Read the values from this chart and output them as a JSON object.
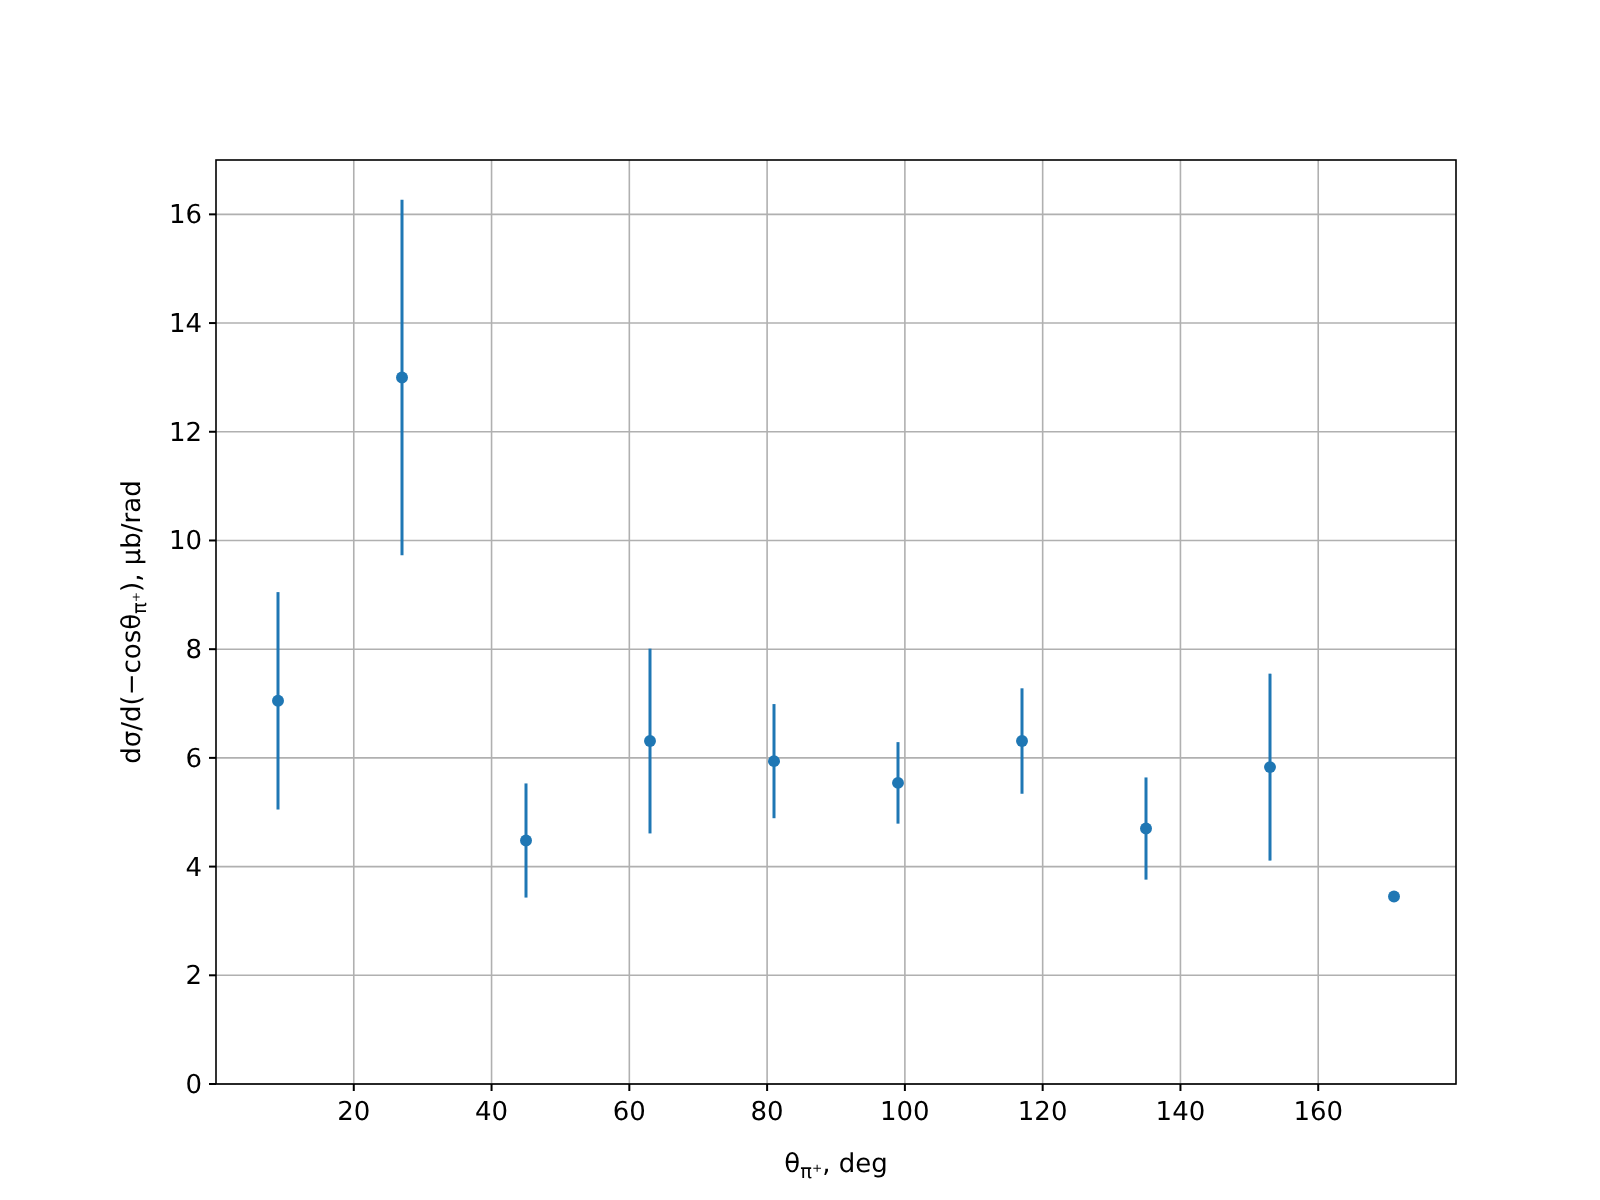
{
  "chart_data": {
    "type": "scatter",
    "xlabel": "θ$_{π⁺}$, deg",
    "ylabel": "dσ/d(−cosθ$_{π⁺}$), μb/rad",
    "x": [
      9,
      27,
      45,
      63,
      81,
      99,
      117,
      135,
      153,
      171
    ],
    "series": [
      {
        "color": "#1f77b4",
        "values": [
          7.05,
          13.0,
          4.48,
          6.31,
          5.94,
          5.54,
          6.31,
          4.7,
          5.83,
          3.45
        ],
        "errors": [
          2.0,
          3.27,
          1.05,
          1.7,
          1.05,
          0.75,
          0.97,
          0.94,
          1.72,
          null
        ]
      }
    ],
    "xlim": [
      0,
      180
    ],
    "xticks": [
      20,
      40,
      60,
      80,
      100,
      120,
      140,
      160
    ],
    "ylim": [
      0,
      17
    ],
    "yticks": [
      0,
      2,
      4,
      6,
      8,
      10,
      12,
      14,
      16
    ],
    "grid": true,
    "marker": "circle"
  }
}
